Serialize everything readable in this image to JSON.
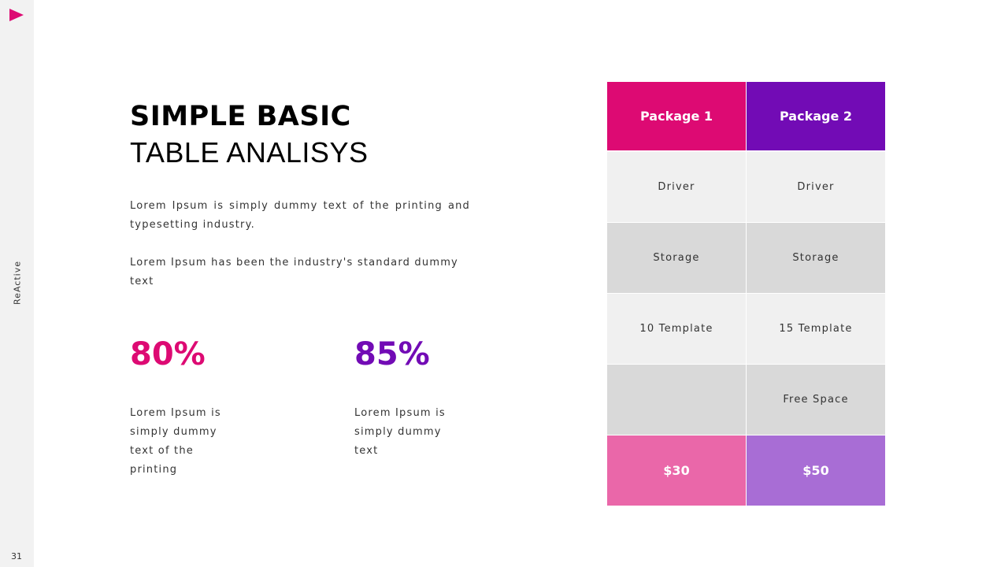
{
  "colors": {
    "pink": "#dd0a73",
    "purple": "#720bb5",
    "pink_light": "#ea67a9",
    "purple_light": "#a86dd5"
  },
  "sidebar": {
    "icon": "play-icon",
    "brand": "ReActive",
    "page_number": "31"
  },
  "title": {
    "line1": "SIMPLE BASIC",
    "line2": "TABLE ANALISYS"
  },
  "paragraphs": [
    "Lorem Ipsum is simply dummy text of the printing and typesetting industry.",
    "Lorem Ipsum has been the industry's standard dummy text"
  ],
  "stats": [
    {
      "value": "80%",
      "text": "Lorem Ipsum is simply dummy text of the printing"
    },
    {
      "value": "85%",
      "text": "Lorem Ipsum is simply dummy text"
    }
  ],
  "table": {
    "headers": [
      "Package 1",
      "Package 2"
    ],
    "rows": [
      [
        "Driver",
        "Driver"
      ],
      [
        "Storage",
        "Storage"
      ],
      [
        "10 Template",
        "15 Template"
      ],
      [
        "",
        "Free Space"
      ]
    ],
    "prices": [
      "$30",
      "$50"
    ]
  }
}
